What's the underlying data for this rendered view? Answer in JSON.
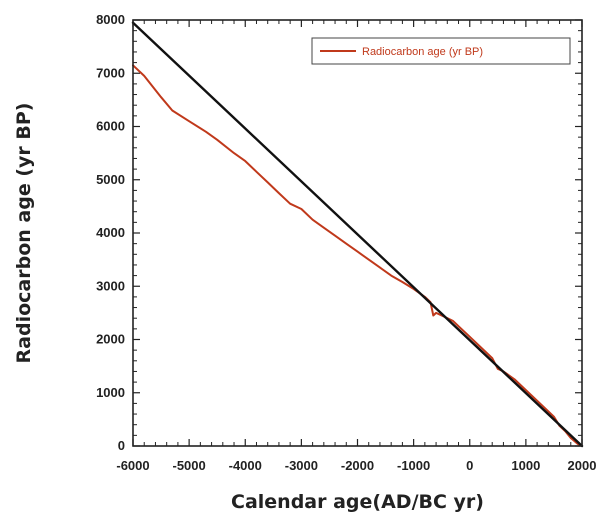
{
  "chart_data": {
    "type": "line",
    "title": "",
    "xlabel": "Calendar age(AD/BC yr)",
    "ylabel": "Radiocarbon age (yr BP)",
    "xlim": [
      -6000,
      2000
    ],
    "ylim": [
      0,
      8000
    ],
    "x_ticks": [
      -6000,
      -5000,
      -4000,
      -3000,
      -2000,
      -1000,
      0,
      1000,
      2000
    ],
    "y_ticks": [
      0,
      1000,
      2000,
      3000,
      4000,
      5000,
      6000,
      7000,
      8000
    ],
    "grid": false,
    "legend_position": "top-right",
    "series": [
      {
        "name": "Radiocarbon age (yr BP)",
        "color": "#c0391b",
        "x": [
          -6000,
          -5800,
          -5500,
          -5300,
          -5000,
          -4700,
          -4500,
          -4200,
          -4000,
          -3800,
          -3600,
          -3400,
          -3200,
          -3000,
          -2800,
          -2600,
          -2400,
          -2200,
          -2000,
          -1800,
          -1600,
          -1400,
          -1200,
          -1000,
          -800,
          -700,
          -650,
          -600,
          -500,
          -400,
          -300,
          -200,
          0,
          200,
          400,
          500,
          600,
          800,
          1000,
          1200,
          1400,
          1500,
          1600,
          1700,
          1800,
          1900,
          1950
        ],
        "y": [
          7150,
          6950,
          6550,
          6300,
          6100,
          5900,
          5750,
          5500,
          5350,
          5150,
          4950,
          4750,
          4550,
          4450,
          4250,
          4100,
          3950,
          3800,
          3650,
          3500,
          3350,
          3200,
          3080,
          2950,
          2800,
          2700,
          2450,
          2500,
          2450,
          2400,
          2350,
          2250,
          2050,
          1850,
          1650,
          1450,
          1400,
          1250,
          1050,
          850,
          650,
          550,
          380,
          280,
          150,
          60,
          20
        ]
      },
      {
        "color": "#111111",
        "x": [
          -6000,
          2000
        ],
        "y": [
          7950,
          0
        ]
      }
    ],
    "legend": [
      "Radiocarbon age (yr BP)"
    ]
  }
}
